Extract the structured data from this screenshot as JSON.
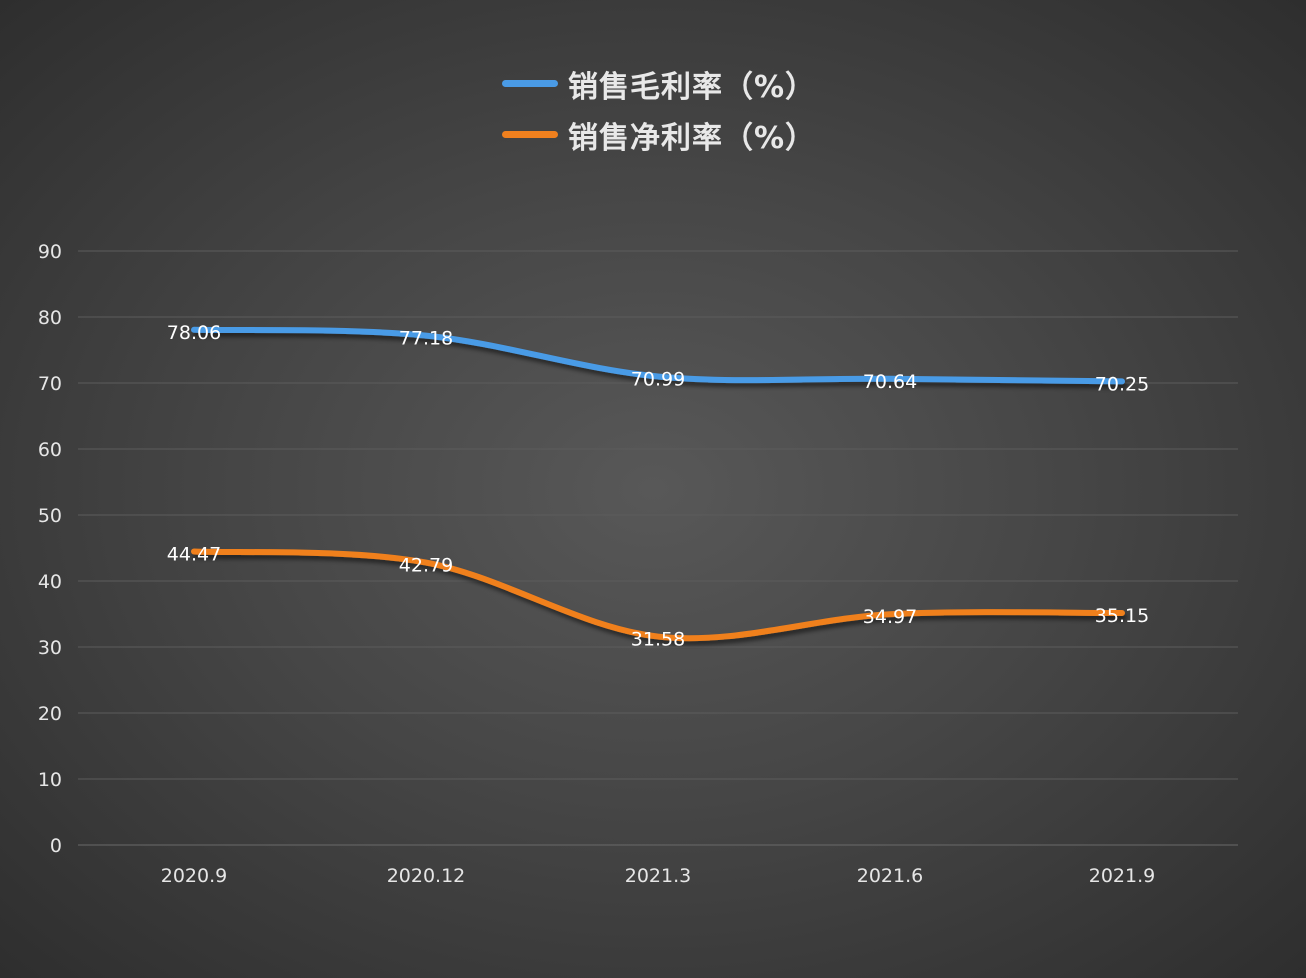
{
  "chart_data": {
    "type": "line",
    "title": "",
    "xlabel": "",
    "ylabel": "",
    "categories": [
      "2020.9",
      "2020.12",
      "2021.3",
      "2021.6",
      "2021.9"
    ],
    "series": [
      {
        "name": "销售毛利率（%）",
        "color": "#4a9be6",
        "values": [
          78.06,
          77.18,
          70.99,
          70.64,
          70.25
        ]
      },
      {
        "name": "销售净利率（%）",
        "color": "#f0801e",
        "values": [
          44.47,
          42.79,
          31.58,
          34.97,
          35.15
        ]
      }
    ],
    "ylim": [
      0,
      90
    ],
    "yticks": [
      0,
      10,
      20,
      30,
      40,
      50,
      60,
      70,
      80,
      90
    ],
    "grid": true,
    "smooth": true,
    "data_labels": true,
    "legend_position": "top-center"
  }
}
